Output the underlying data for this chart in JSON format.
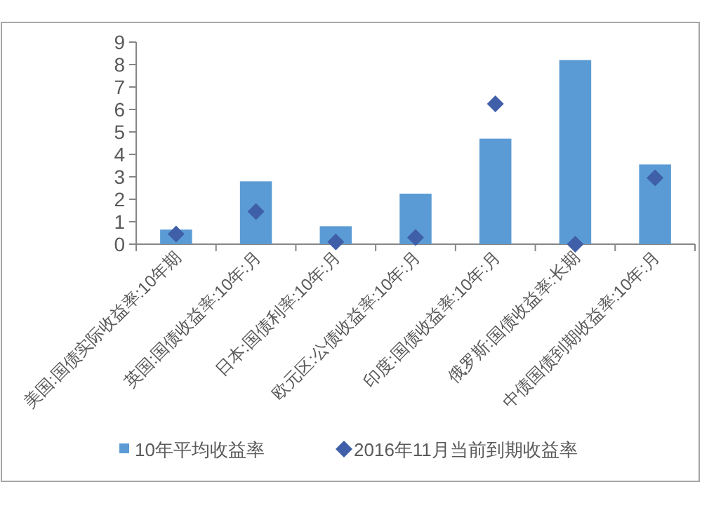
{
  "chart_data": {
    "type": "bar",
    "categories": [
      "美国:国债实际收益率:10年期",
      "英国:国债收益率:10年:月",
      "日本:国债利率:10年:月",
      "欧元区:公债收益率:10年:月",
      "印度:国债收益率:10年:月",
      "俄罗斯:国债收益率:长期",
      "中债国债到期收益率:10年:月"
    ],
    "series": [
      {
        "name": "10年平均收益率",
        "color": "#5b9bd5",
        "values": [
          0.65,
          2.8,
          0.8,
          2.25,
          4.7,
          8.2,
          3.55
        ]
      },
      {
        "name": "2016年11月当前到期收益率",
        "type": "scatter",
        "color": "#3f5fa8",
        "marker": "diamond",
        "values": [
          0.45,
          1.45,
          0.1,
          0.3,
          6.25,
          0,
          2.95
        ]
      }
    ],
    "ylim": [
      0,
      9
    ],
    "yticks": [
      0,
      1,
      2,
      3,
      4,
      5,
      6,
      7,
      8,
      9
    ],
    "grid": false,
    "legend": "bottom"
  }
}
